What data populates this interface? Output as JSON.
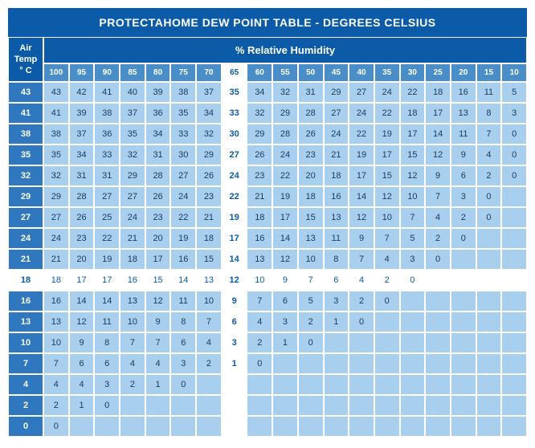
{
  "title": "PROTECTAHOME DEW POINT TABLE - DEGREES CELSIUS",
  "airTempHeader": [
    "Air",
    "Temp",
    "° C"
  ],
  "rhHeader": "% Relative Humidity",
  "humidityCols": [
    100,
    95,
    90,
    85,
    80,
    75,
    70,
    65,
    60,
    55,
    50,
    45,
    40,
    35,
    30,
    25,
    20,
    15,
    10
  ],
  "highlightCol": 65,
  "highlightRow": 18,
  "airTemps": [
    43,
    41,
    38,
    35,
    32,
    29,
    27,
    24,
    21,
    18,
    16,
    13,
    10,
    7,
    4,
    2,
    0
  ],
  "colors": {
    "titleBg": "#0b5ba8",
    "titleText": "#ffffff",
    "colHeadBg": "#4a8ec9",
    "rowHeadBg": "#2f78c0",
    "cellBg": "#a9cfee",
    "cellText": "#1a3a5a",
    "highlightBg": "#ffffff",
    "highlightText": "#0b5ba8",
    "border": "#ffffff"
  },
  "typography": {
    "title_fontsize": 14,
    "header_fontsize": 13,
    "colhead_fontsize": 10,
    "cell_fontsize": 11,
    "family": "Arial"
  },
  "data": {
    "43": [
      43,
      42,
      41,
      40,
      39,
      38,
      37,
      35,
      34,
      32,
      31,
      29,
      27,
      24,
      22,
      18,
      16,
      11,
      5
    ],
    "41": [
      41,
      39,
      38,
      37,
      36,
      35,
      34,
      33,
      32,
      29,
      28,
      27,
      24,
      22,
      18,
      17,
      13,
      8,
      3
    ],
    "38": [
      38,
      37,
      36,
      35,
      34,
      33,
      32,
      30,
      29,
      28,
      26,
      24,
      22,
      19,
      17,
      14,
      11,
      7,
      0
    ],
    "35": [
      35,
      34,
      33,
      32,
      31,
      30,
      29,
      27,
      26,
      24,
      23,
      21,
      19,
      17,
      15,
      12,
      9,
      4,
      0
    ],
    "32": [
      32,
      31,
      31,
      29,
      28,
      27,
      26,
      24,
      23,
      22,
      20,
      18,
      17,
      15,
      12,
      9,
      6,
      2,
      0
    ],
    "29": [
      29,
      28,
      27,
      27,
      26,
      24,
      23,
      22,
      21,
      19,
      18,
      16,
      14,
      12,
      10,
      7,
      3,
      0,
      null
    ],
    "27": [
      27,
      26,
      25,
      24,
      23,
      22,
      21,
      19,
      18,
      17,
      15,
      13,
      12,
      10,
      7,
      4,
      2,
      0,
      null
    ],
    "24": [
      24,
      23,
      22,
      21,
      20,
      19,
      18,
      17,
      16,
      14,
      13,
      11,
      9,
      7,
      5,
      2,
      0,
      null,
      null
    ],
    "21": [
      21,
      20,
      19,
      18,
      17,
      16,
      15,
      14,
      13,
      12,
      10,
      8,
      7,
      4,
      3,
      0,
      null,
      null,
      null
    ],
    "18": [
      18,
      17,
      17,
      16,
      15,
      14,
      13,
      12,
      10,
      9,
      7,
      6,
      4,
      2,
      0,
      null,
      null,
      null,
      null
    ],
    "16": [
      16,
      14,
      14,
      13,
      12,
      11,
      10,
      9,
      7,
      6,
      5,
      3,
      2,
      0,
      null,
      null,
      null,
      null,
      null
    ],
    "13": [
      13,
      12,
      11,
      10,
      9,
      8,
      7,
      6,
      4,
      3,
      2,
      1,
      0,
      null,
      null,
      null,
      null,
      null,
      null
    ],
    "10": [
      10,
      9,
      8,
      7,
      7,
      6,
      4,
      3,
      2,
      1,
      0,
      null,
      null,
      null,
      null,
      null,
      null,
      null,
      null
    ],
    "7": [
      7,
      6,
      6,
      4,
      4,
      3,
      2,
      1,
      0,
      null,
      null,
      null,
      null,
      null,
      null,
      null,
      null,
      null,
      null
    ],
    "4": [
      4,
      4,
      3,
      2,
      1,
      0,
      null,
      null,
      null,
      null,
      null,
      null,
      null,
      null,
      null,
      null,
      null,
      null,
      null
    ],
    "2": [
      2,
      1,
      0,
      null,
      null,
      null,
      null,
      null,
      null,
      null,
      null,
      null,
      null,
      null,
      null,
      null,
      null,
      null,
      null
    ],
    "0": [
      0,
      null,
      null,
      null,
      null,
      null,
      null,
      null,
      null,
      null,
      null,
      null,
      null,
      null,
      null,
      null,
      null,
      null,
      null
    ]
  }
}
